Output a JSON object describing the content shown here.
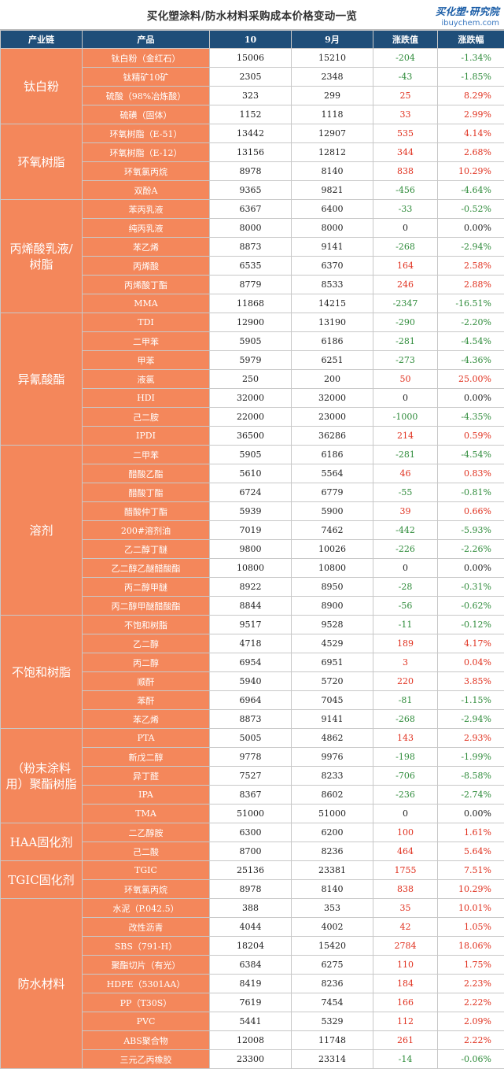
{
  "header": {
    "title": "买化塑涂料/防水材料采购成本价格变动一览",
    "logo_main": "买化塑·研究院",
    "logo_sub": "ibuychem.com"
  },
  "columns": [
    "产业链",
    "产品",
    "10",
    "9月",
    "涨跌值",
    "涨跌幅"
  ],
  "groups": [
    {
      "category": "钛白粉",
      "rows": [
        [
          "钛白粉（金红石）",
          "15006",
          "15210",
          "-204",
          "-1.34%"
        ],
        [
          "钛精矿10矿",
          "2305",
          "2348",
          "-43",
          "-1.85%"
        ],
        [
          "硫酸（98%冶炼酸）",
          "323",
          "299",
          "25",
          "8.29%"
        ],
        [
          "硫磺（固体）",
          "1152",
          "1118",
          "33",
          "2.99%"
        ]
      ]
    },
    {
      "category": "环氧树脂",
      "rows": [
        [
          "环氧树脂（E-51）",
          "13442",
          "12907",
          "535",
          "4.14%"
        ],
        [
          "环氧树脂（E-12）",
          "13156",
          "12812",
          "344",
          "2.68%"
        ],
        [
          "环氧氯丙烷",
          "8978",
          "8140",
          "838",
          "10.29%"
        ],
        [
          "双酚A",
          "9365",
          "9821",
          "-456",
          "-4.64%"
        ]
      ]
    },
    {
      "category": "丙烯酸乳液/树脂",
      "rows": [
        [
          "苯丙乳液",
          "6367",
          "6400",
          "-33",
          "-0.52%"
        ],
        [
          "纯丙乳液",
          "8000",
          "8000",
          "0",
          "0.00%"
        ],
        [
          "苯乙烯",
          "8873",
          "9141",
          "-268",
          "-2.94%"
        ],
        [
          "丙烯酸",
          "6535",
          "6370",
          "164",
          "2.58%"
        ],
        [
          "丙烯酸丁酯",
          "8779",
          "8533",
          "246",
          "2.88%"
        ],
        [
          "MMA",
          "11868",
          "14215",
          "-2347",
          "-16.51%"
        ]
      ]
    },
    {
      "category": "异氰酸酯",
      "rows": [
        [
          "TDI",
          "12900",
          "13190",
          "-290",
          "-2.20%"
        ],
        [
          "二甲苯",
          "5905",
          "6186",
          "-281",
          "-4.54%"
        ],
        [
          "甲苯",
          "5979",
          "6251",
          "-273",
          "-4.36%"
        ],
        [
          "液氯",
          "250",
          "200",
          "50",
          "25.00%"
        ],
        [
          "HDI",
          "32000",
          "32000",
          "0",
          "0.00%"
        ],
        [
          "己二胺",
          "22000",
          "23000",
          "-1000",
          "-4.35%"
        ],
        [
          "IPDI",
          "36500",
          "36286",
          "214",
          "0.59%"
        ]
      ]
    },
    {
      "category": "溶剂",
      "rows": [
        [
          "二甲苯",
          "5905",
          "6186",
          "-281",
          "-4.54%"
        ],
        [
          "醋酸乙酯",
          "5610",
          "5564",
          "46",
          "0.83%"
        ],
        [
          "醋酸丁酯",
          "6724",
          "6779",
          "-55",
          "-0.81%"
        ],
        [
          "醋酸仲丁酯",
          "5939",
          "5900",
          "39",
          "0.66%"
        ],
        [
          "200#溶剂油",
          "7019",
          "7462",
          "-442",
          "-5.93%"
        ],
        [
          "乙二醇丁醚",
          "9800",
          "10026",
          "-226",
          "-2.26%"
        ],
        [
          "乙二醇乙醚醋酸酯",
          "10800",
          "10800",
          "0",
          "0.00%"
        ],
        [
          "丙二醇甲醚",
          "8922",
          "8950",
          "-28",
          "-0.31%"
        ],
        [
          "丙二醇甲醚醋酸酯",
          "8844",
          "8900",
          "-56",
          "-0.62%"
        ]
      ]
    },
    {
      "category": "不饱和树脂",
      "rows": [
        [
          "不饱和树脂",
          "9517",
          "9528",
          "-11",
          "-0.12%"
        ],
        [
          "乙二醇",
          "4718",
          "4529",
          "189",
          "4.17%"
        ],
        [
          "丙二醇",
          "6954",
          "6951",
          "3",
          "0.04%"
        ],
        [
          "顺酐",
          "5940",
          "5720",
          "220",
          "3.85%"
        ],
        [
          "苯酐",
          "6964",
          "7045",
          "-81",
          "-1.15%"
        ],
        [
          "苯乙烯",
          "8873",
          "9141",
          "-268",
          "-2.94%"
        ]
      ]
    },
    {
      "category": "（粉末涂料用）聚酯树脂",
      "rows": [
        [
          "PTA",
          "5005",
          "4862",
          "143",
          "2.93%"
        ],
        [
          "新戊二醇",
          "9778",
          "9976",
          "-198",
          "-1.99%"
        ],
        [
          "异丁醛",
          "7527",
          "8233",
          "-706",
          "-8.58%"
        ],
        [
          "IPA",
          "8367",
          "8602",
          "-236",
          "-2.74%"
        ],
        [
          "TMA",
          "51000",
          "51000",
          "0",
          "0.00%"
        ]
      ]
    },
    {
      "category": "HAA固化剂",
      "rows": [
        [
          "二乙醇胺",
          "6300",
          "6200",
          "100",
          "1.61%"
        ],
        [
          "己二酸",
          "8700",
          "8236",
          "464",
          "5.64%"
        ]
      ]
    },
    {
      "category": "TGIC固化剂",
      "rows": [
        [
          "TGIC",
          "25136",
          "23381",
          "1755",
          "7.51%"
        ],
        [
          "环氧氯丙烷",
          "8978",
          "8140",
          "838",
          "10.29%"
        ]
      ]
    },
    {
      "category": "防水材料",
      "rows": [
        [
          "水泥（P.042.5）",
          "388",
          "353",
          "35",
          "10.01%"
        ],
        [
          "改性沥青",
          "4044",
          "4002",
          "42",
          "1.05%"
        ],
        [
          "SBS（791-H）",
          "18204",
          "15420",
          "2784",
          "18.06%"
        ],
        [
          "聚酯切片（有光）",
          "6384",
          "6275",
          "110",
          "1.75%"
        ],
        [
          "HDPE（5301AA）",
          "8419",
          "8236",
          "184",
          "2.23%"
        ],
        [
          "PP（T30S）",
          "7619",
          "7454",
          "166",
          "2.22%"
        ],
        [
          "PVC",
          "5441",
          "5329",
          "112",
          "2.09%"
        ],
        [
          "ABS聚合物",
          "12008",
          "11748",
          "261",
          "2.22%"
        ],
        [
          "三元乙丙橡胶",
          "23300",
          "23314",
          "-14",
          "-0.06%"
        ]
      ]
    }
  ],
  "colors": {
    "header_bg": "#1f4e79",
    "category_bg": "#f4875b",
    "up": "#e0301e",
    "down": "#2e8b3a"
  }
}
